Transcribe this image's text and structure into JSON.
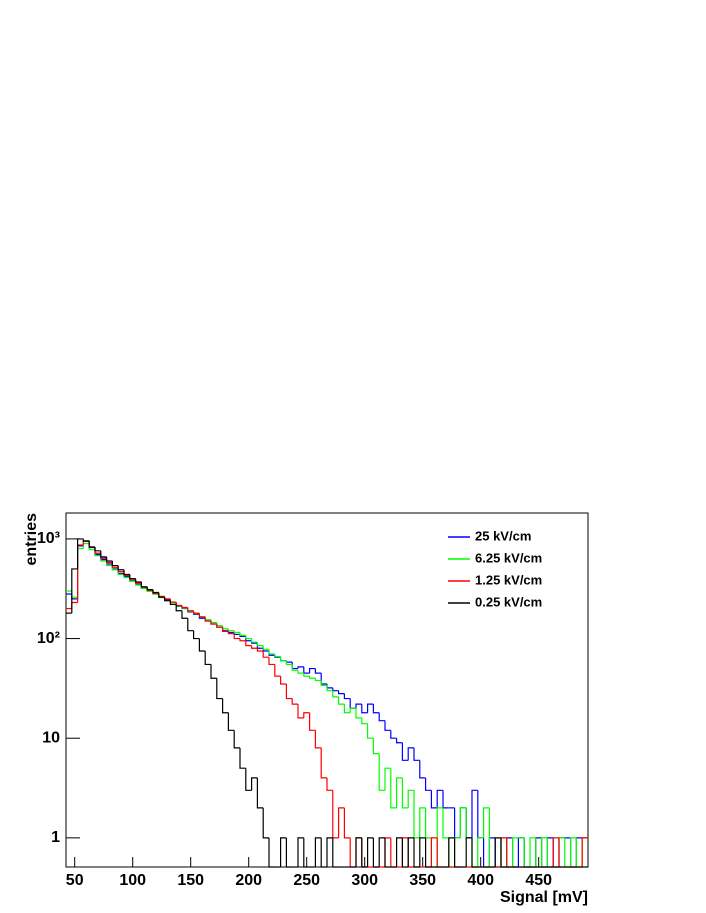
{
  "chart_data": {
    "type": "histogram",
    "xlabel": "Signal [mV]",
    "ylabel": "entries",
    "xlim": [
      42.5,
      492.5
    ],
    "ylim": [
      0.51,
      1820
    ],
    "log_y": true,
    "grid": false,
    "legend": "top-right",
    "xticks": [
      50,
      100,
      150,
      200,
      250,
      300,
      350,
      400,
      450
    ],
    "yticks": [
      1,
      10,
      {
        "value": 100,
        "label": "10²"
      },
      {
        "value": 1000,
        "label": "10³"
      }
    ],
    "bins": [
      42.5,
      47.5,
      52.5,
      57.5,
      62.5,
      67.5,
      72.5,
      77.5,
      82.5,
      87.5,
      92.5,
      97.5,
      102.5,
      107.5,
      112.5,
      117.5,
      122.5,
      127.5,
      132.5,
      137.5,
      142.5,
      147.5,
      152.5,
      157.5,
      162.5,
      167.5,
      172.5,
      177.5,
      182.5,
      187.5,
      192.5,
      197.5,
      202.5,
      207.5,
      212.5,
      217.5,
      222.5,
      227.5,
      232.5,
      237.5,
      242.5,
      247.5,
      252.5,
      257.5,
      262.5,
      267.5,
      272.5,
      277.5,
      282.5,
      287.5,
      292.5,
      297.5,
      302.5,
      307.5,
      312.5,
      317.5,
      322.5,
      327.5,
      332.5,
      337.5,
      342.5,
      347.5,
      352.5,
      357.5,
      362.5,
      367.5,
      372.5,
      377.5,
      382.5,
      387.5,
      392.5,
      397.5,
      402.5,
      407.5,
      412.5,
      417.5,
      422.5,
      427.5,
      432.5,
      437.5,
      442.5,
      447.5,
      452.5,
      457.5,
      462.5,
      467.5,
      472.5,
      477.5,
      482.5,
      487.5,
      492.5
    ],
    "series": [
      {
        "name": "25 kV/cm",
        "color": "#0000ff",
        "values": [
          280,
          250,
          850,
          950,
          820,
          700,
          620,
          560,
          500,
          450,
          420,
          380,
          350,
          320,
          300,
          280,
          260,
          245,
          230,
          210,
          200,
          185,
          175,
          160,
          150,
          140,
          130,
          120,
          115,
          110,
          105,
          95,
          90,
          80,
          75,
          68,
          65,
          60,
          58,
          50,
          52,
          45,
          50,
          45,
          35,
          32,
          30,
          28,
          25,
          20,
          22,
          18,
          22,
          18,
          15,
          12,
          10,
          9,
          6,
          8,
          6,
          4,
          3,
          2,
          3,
          2,
          2,
          1,
          2,
          1,
          3,
          1,
          0,
          1,
          0,
          0,
          1,
          0,
          1,
          0,
          0,
          1,
          0,
          1,
          0,
          1,
          1,
          0,
          1,
          1
        ]
      },
      {
        "name": "6.25 kV/cm",
        "color": "#00ff00",
        "values": [
          300,
          260,
          800,
          900,
          780,
          680,
          600,
          540,
          490,
          440,
          410,
          375,
          345,
          318,
          298,
          278,
          258,
          240,
          228,
          212,
          202,
          188,
          178,
          165,
          155,
          145,
          135,
          125,
          120,
          115,
          108,
          100,
          92,
          85,
          78,
          70,
          66,
          60,
          55,
          48,
          45,
          42,
          40,
          38,
          34,
          30,
          26,
          22,
          18,
          20,
          16,
          14,
          10,
          7,
          3,
          5,
          2,
          4,
          2,
          3,
          1,
          2,
          1,
          0,
          2,
          1,
          0,
          1,
          2,
          1,
          0,
          1,
          2,
          0,
          0,
          1,
          0,
          1,
          1,
          0,
          1,
          0,
          1,
          0,
          0,
          1,
          0,
          1,
          0,
          1
        ]
      },
      {
        "name": "1.25 kV/cm",
        "color": "#ff0000",
        "values": [
          200,
          230,
          870,
          960,
          830,
          720,
          640,
          580,
          520,
          470,
          430,
          390,
          360,
          330,
          305,
          285,
          265,
          250,
          232,
          215,
          205,
          190,
          180,
          165,
          150,
          140,
          130,
          118,
          112,
          100,
          95,
          85,
          80,
          75,
          65,
          55,
          42,
          35,
          25,
          22,
          16,
          18,
          12,
          8,
          4,
          3,
          1,
          2,
          1,
          0,
          1,
          0,
          0,
          0,
          0,
          1,
          0,
          0,
          1,
          0,
          0,
          0,
          0,
          1,
          0,
          0,
          0,
          0,
          0,
          0,
          0,
          0,
          0,
          0,
          0,
          1,
          0,
          0,
          0,
          0,
          0,
          0,
          0,
          0,
          1,
          0,
          0,
          0,
          0,
          1
        ]
      },
      {
        "name": "0.25 kV/cm",
        "color": "#000000",
        "values": [
          180,
          500,
          1000,
          950,
          830,
          760,
          660,
          600,
          540,
          490,
          440,
          400,
          370,
          330,
          310,
          290,
          260,
          240,
          220,
          190,
          160,
          120,
          100,
          75,
          55,
          40,
          25,
          18,
          12,
          8,
          5,
          3,
          4,
          2,
          1,
          0,
          0,
          1,
          0,
          0,
          1,
          0,
          0,
          1,
          0,
          1,
          0,
          0,
          0,
          0,
          1,
          0,
          1,
          0,
          1,
          0,
          0,
          1,
          0,
          1,
          0,
          1,
          0,
          0,
          0,
          0,
          1,
          0,
          0,
          1,
          0,
          0,
          0,
          0,
          1,
          0,
          0,
          0,
          0,
          0,
          0,
          0,
          0,
          0,
          0,
          0,
          0,
          0,
          0,
          0
        ]
      }
    ]
  }
}
